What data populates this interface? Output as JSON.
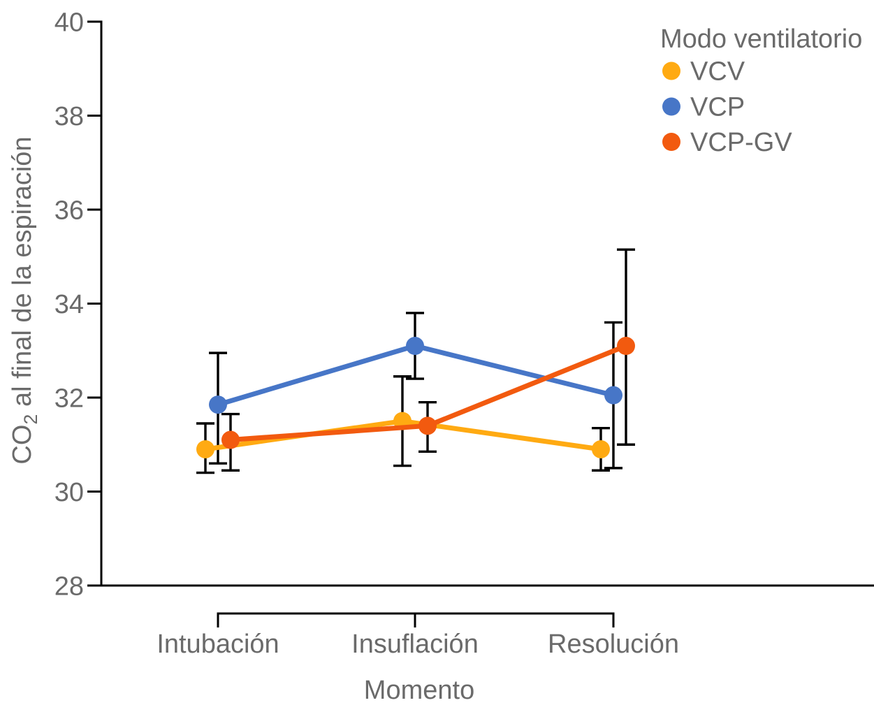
{
  "chart_data": {
    "type": "line",
    "title": "",
    "legend_title": "Modo ventilatorio",
    "legend_position": "top-right",
    "xlabel": "Momento",
    "ylabel": {
      "pre": "CO",
      "sub": "2",
      "post": " al final de la espiración"
    },
    "categories": [
      "Intubación",
      "Insuflación",
      "Resolución"
    ],
    "ylim": [
      28,
      40
    ],
    "yticks": [
      28,
      30,
      32,
      34,
      36,
      38,
      40
    ],
    "grid": false,
    "error_bars": true,
    "series": [
      {
        "name": "VCV",
        "color": "#ffaa12",
        "values": [
          30.9,
          31.5,
          30.9
        ],
        "err_low": [
          30.4,
          30.55,
          30.45
        ],
        "err_high": [
          31.45,
          32.45,
          31.35
        ]
      },
      {
        "name": "VCP",
        "color": "#4776c7",
        "values": [
          31.85,
          33.1,
          32.05
        ],
        "err_low": [
          30.6,
          32.4,
          30.5
        ],
        "err_high": [
          32.95,
          33.8,
          33.6
        ]
      },
      {
        "name": "VCP-GV",
        "color": "#f25a0f",
        "values": [
          31.1,
          31.4,
          33.1
        ],
        "err_low": [
          30.45,
          30.85,
          31.0
        ],
        "err_high": [
          31.65,
          31.9,
          35.15
        ]
      }
    ],
    "axis_color": "#000000",
    "text_color": "#6a6a6a"
  }
}
